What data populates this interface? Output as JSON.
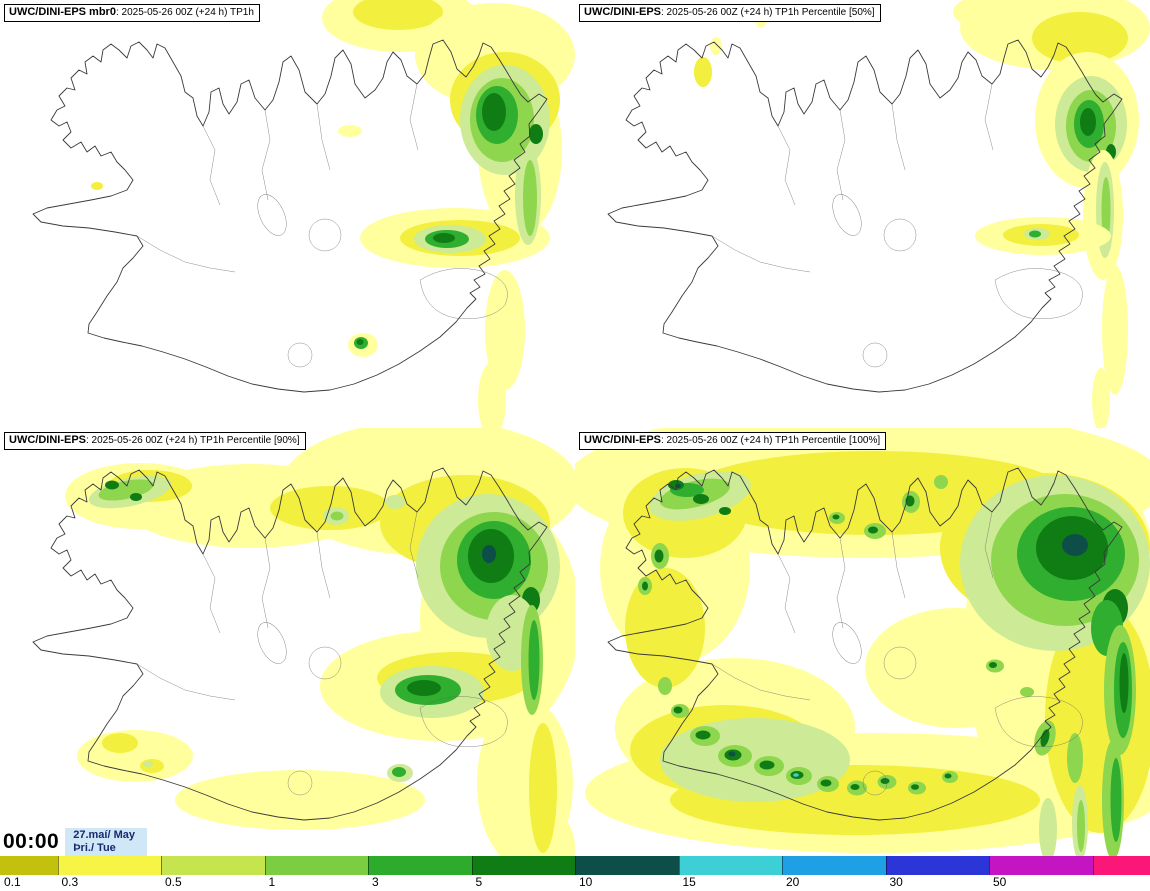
{
  "panels": [
    {
      "model": "UWC/DINI-EPS mbr0",
      "detail": ": 2025-05-26 00Z (+24 h) TP1h"
    },
    {
      "model": "UWC/DINI-EPS",
      "detail": ": 2025-05-26 00Z (+24 h) TP1h Percentile [50%]"
    },
    {
      "model": "UWC/DINI-EPS",
      "detail": ": 2025-05-26 00Z (+24 h) TP1h Percentile [90%]"
    },
    {
      "model": "UWC/DINI-EPS",
      "detail": ": 2025-05-26 00Z (+24 h) TP1h Percentile [100%]"
    }
  ],
  "time_label": {
    "time": "00:00",
    "date": "27.maí/ May",
    "day": "Þri./ Tue",
    "bg_color": "#cfe7f7",
    "text_color": "#172a6e"
  },
  "colorbar": {
    "labels": [
      "0.1",
      "0.3",
      "0.5",
      "1",
      "3",
      "5",
      "10",
      "15",
      "20",
      "30",
      "50"
    ],
    "colors": [
      "#c2c20e",
      "#f6f545",
      "#c5e44e",
      "#7ccd41",
      "#2cab2c",
      "#0f7d14",
      "#0d4f48",
      "#3ccfd5",
      "#1f9fe4",
      "#2c35d8",
      "#c315c2",
      "#fb1778"
    ]
  },
  "map_palette": {
    "pale_yellow": "#ffff9e",
    "yellow": "#f2ef3f",
    "pale_green": "#cdea96",
    "light_green": "#8ed64d",
    "green": "#2fae2f",
    "dark_green": "#0f7d14",
    "dark_teal": "#0d4f48",
    "cyan": "#3ccfd5"
  }
}
